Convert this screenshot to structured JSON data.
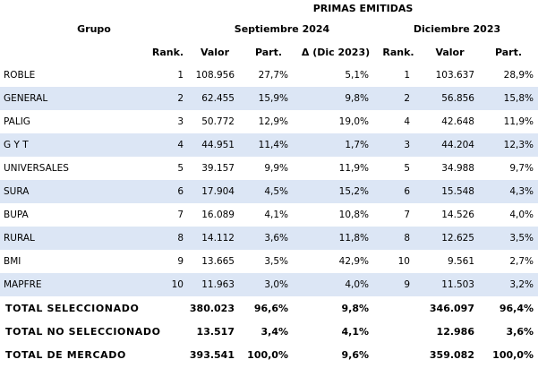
{
  "header": {
    "title": "PRIMAS EMITIDAS",
    "group_label": "Grupo",
    "period_current": "Septiembre 2024",
    "period_previous": "Diciembre 2023",
    "col_rank": "Rank.",
    "col_valor": "Valor",
    "col_part": "Part.",
    "col_delta": "Δ (Dic 2023)"
  },
  "rows": [
    {
      "grupo": "ROBLE",
      "rank": "1",
      "valor": "108.956",
      "part": "27,7%",
      "delta": "5,1%",
      "rank_prev": "1",
      "valor_prev": "103.637",
      "part_prev": "28,9%"
    },
    {
      "grupo": "GENERAL",
      "rank": "2",
      "valor": "62.455",
      "part": "15,9%",
      "delta": "9,8%",
      "rank_prev": "2",
      "valor_prev": "56.856",
      "part_prev": "15,8%"
    },
    {
      "grupo": "PALIG",
      "rank": "3",
      "valor": "50.772",
      "part": "12,9%",
      "delta": "19,0%",
      "rank_prev": "4",
      "valor_prev": "42.648",
      "part_prev": "11,9%"
    },
    {
      "grupo": "G Y T",
      "rank": "4",
      "valor": "44.951",
      "part": "11,4%",
      "delta": "1,7%",
      "rank_prev": "3",
      "valor_prev": "44.204",
      "part_prev": "12,3%"
    },
    {
      "grupo": "UNIVERSALES",
      "rank": "5",
      "valor": "39.157",
      "part": "9,9%",
      "delta": "11,9%",
      "rank_prev": "5",
      "valor_prev": "34.988",
      "part_prev": "9,7%"
    },
    {
      "grupo": "SURA",
      "rank": "6",
      "valor": "17.904",
      "part": "4,5%",
      "delta": "15,2%",
      "rank_prev": "6",
      "valor_prev": "15.548",
      "part_prev": "4,3%"
    },
    {
      "grupo": "BUPA",
      "rank": "7",
      "valor": "16.089",
      "part": "4,1%",
      "delta": "10,8%",
      "rank_prev": "7",
      "valor_prev": "14.526",
      "part_prev": "4,0%"
    },
    {
      "grupo": "RURAL",
      "rank": "8",
      "valor": "14.112",
      "part": "3,6%",
      "delta": "11,8%",
      "rank_prev": "8",
      "valor_prev": "12.625",
      "part_prev": "3,5%"
    },
    {
      "grupo": "BMI",
      "rank": "9",
      "valor": "13.665",
      "part": "3,5%",
      "delta": "42,9%",
      "rank_prev": "10",
      "valor_prev": "9.561",
      "part_prev": "2,7%"
    },
    {
      "grupo": "MAPFRE",
      "rank": "10",
      "valor": "11.963",
      "part": "3,0%",
      "delta": "4,0%",
      "rank_prev": "9",
      "valor_prev": "11.503",
      "part_prev": "3,2%"
    }
  ],
  "totals": [
    {
      "label": "TOTAL SELECCIONADO",
      "valor": "380.023",
      "part": "96,6%",
      "delta": "9,8%",
      "valor_prev": "346.097",
      "part_prev": "96,4%"
    },
    {
      "label": "TOTAL NO SELECCIONADO",
      "valor": "13.517",
      "part": "3,4%",
      "delta": "4,1%",
      "valor_prev": "12.986",
      "part_prev": "3,6%"
    },
    {
      "label": "TOTAL DE MERCADO",
      "valor": "393.541",
      "part": "100,0%",
      "delta": "9,6%",
      "valor_prev": "359.082",
      "part_prev": "100,0%"
    }
  ],
  "colors": {
    "stripe": "#dce6f5",
    "text": "#000000",
    "background": "#ffffff"
  }
}
